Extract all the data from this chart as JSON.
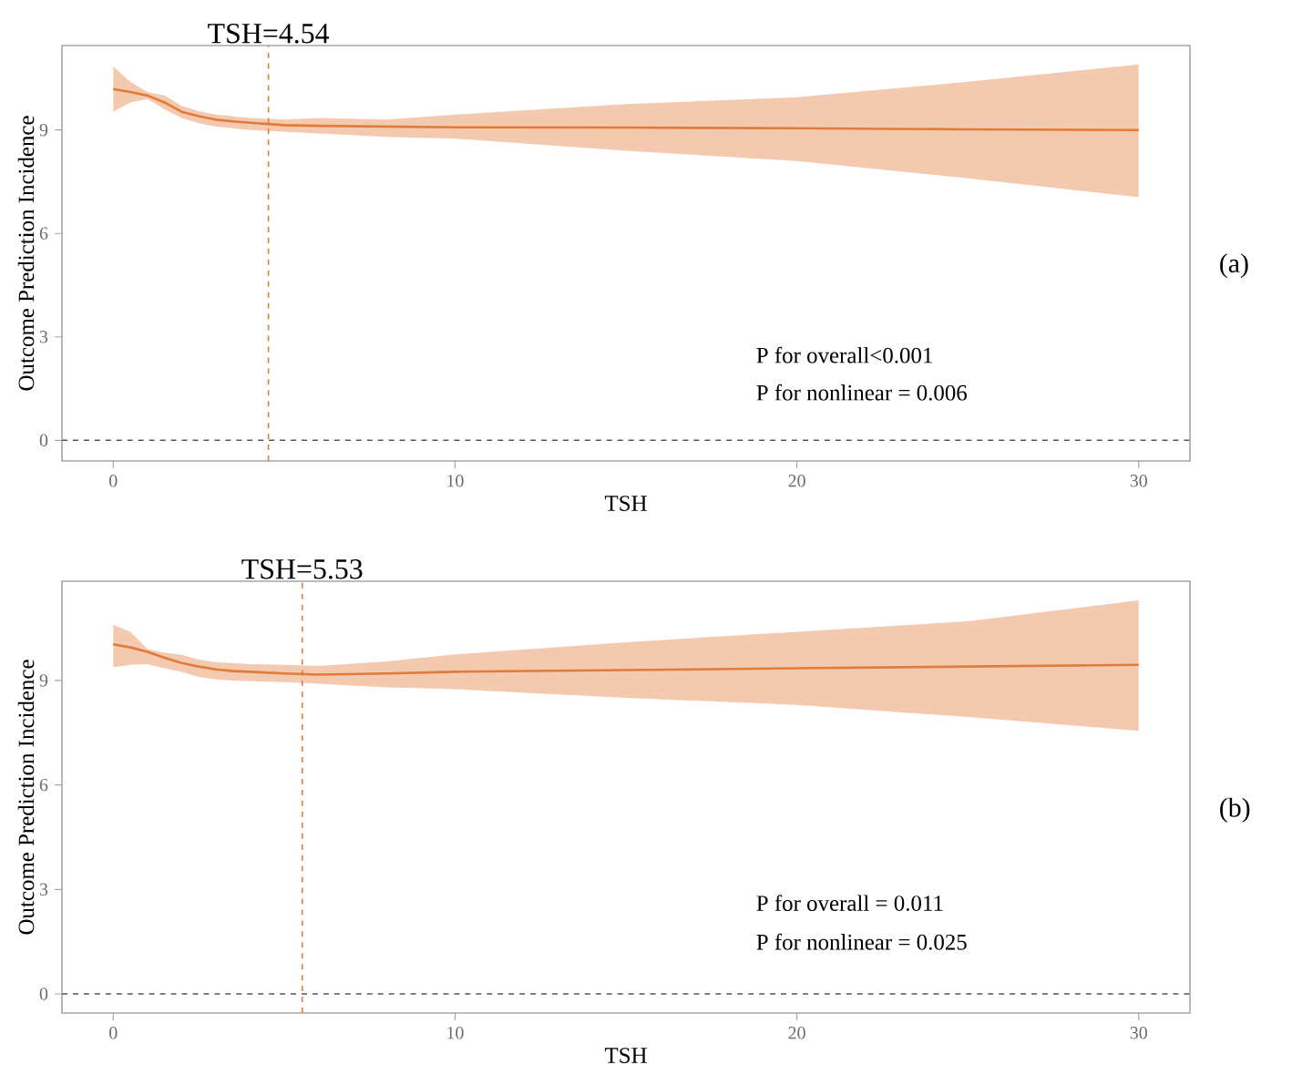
{
  "chart_data": [
    {
      "type": "line",
      "xlabel": "TSH",
      "ylabel": "Outcome Prediction Incidence",
      "xlim": [
        -1.5,
        31.5
      ],
      "ylim": [
        -0.6,
        11.45
      ],
      "xticks": [
        0,
        10,
        20,
        30
      ],
      "yticks": [
        0,
        3,
        6,
        9
      ],
      "marker": "none",
      "line_style": "solid",
      "series": [
        {
          "color": "#e07b39",
          "x": [
            0,
            0.5,
            1,
            1.5,
            2,
            2.5,
            3,
            3.5,
            4,
            5,
            6,
            8,
            10,
            15,
            20,
            25,
            30
          ],
          "values": [
            10.19,
            10.1,
            10.0,
            9.8,
            9.53,
            9.4,
            9.3,
            9.25,
            9.21,
            9.14,
            9.12,
            9.1,
            9.08,
            9.07,
            9.05,
            9.02,
            9.0
          ],
          "lower": [
            9.53,
            9.8,
            9.9,
            9.6,
            9.35,
            9.2,
            9.1,
            9.05,
            9.0,
            8.95,
            8.9,
            8.8,
            8.75,
            8.4,
            8.1,
            7.6,
            7.05
          ],
          "upper": [
            10.84,
            10.4,
            10.1,
            10.0,
            9.7,
            9.55,
            9.45,
            9.4,
            9.35,
            9.3,
            9.35,
            9.3,
            9.45,
            9.75,
            9.95,
            10.4,
            10.9
          ]
        }
      ],
      "ref_lines": [
        {
          "axis": "x",
          "value": 4.54,
          "label": "TSH=4.54",
          "color": "#e07b39",
          "line_style": "dashed"
        },
        {
          "axis": "y",
          "value": 0,
          "color": "#555555",
          "line_style": "dashed"
        }
      ],
      "annotations": [
        "P for overall<0.001",
        "P for nonlinear = 0.006",
        "(a)"
      ]
    },
    {
      "type": "line",
      "xlabel": "TSH",
      "ylabel": "Outcome Prediction Incidence",
      "xlim": [
        -1.5,
        31.5
      ],
      "ylim": [
        -0.55,
        11.85
      ],
      "xticks": [
        0,
        10,
        20,
        30
      ],
      "yticks": [
        0,
        3,
        6,
        9
      ],
      "marker": "none",
      "line_style": "solid",
      "series": [
        {
          "color": "#e07b39",
          "x": [
            0,
            0.5,
            1,
            1.5,
            2,
            2.5,
            3,
            3.5,
            4,
            5,
            6,
            8,
            10,
            15,
            20,
            25,
            30
          ],
          "values": [
            10.04,
            9.95,
            9.82,
            9.65,
            9.5,
            9.4,
            9.32,
            9.27,
            9.25,
            9.2,
            9.17,
            9.2,
            9.25,
            9.3,
            9.35,
            9.4,
            9.45
          ],
          "lower": [
            9.38,
            9.45,
            9.47,
            9.35,
            9.25,
            9.1,
            9.03,
            9.0,
            8.98,
            8.95,
            8.91,
            8.8,
            8.75,
            8.5,
            8.3,
            7.95,
            7.55
          ],
          "upper": [
            10.6,
            10.4,
            9.9,
            9.8,
            9.74,
            9.6,
            9.52,
            9.5,
            9.47,
            9.45,
            9.42,
            9.55,
            9.75,
            10.1,
            10.4,
            10.7,
            11.3
          ]
        }
      ],
      "ref_lines": [
        {
          "axis": "x",
          "value": 5.53,
          "label": "TSH=5.53",
          "color": "#e07b39",
          "line_style": "dashed"
        },
        {
          "axis": "y",
          "value": 0,
          "color": "#555555",
          "line_style": "dashed"
        }
      ],
      "annotations": [
        "P for overall = 0.011",
        "P for nonlinear = 0.025",
        "(b)"
      ]
    }
  ]
}
